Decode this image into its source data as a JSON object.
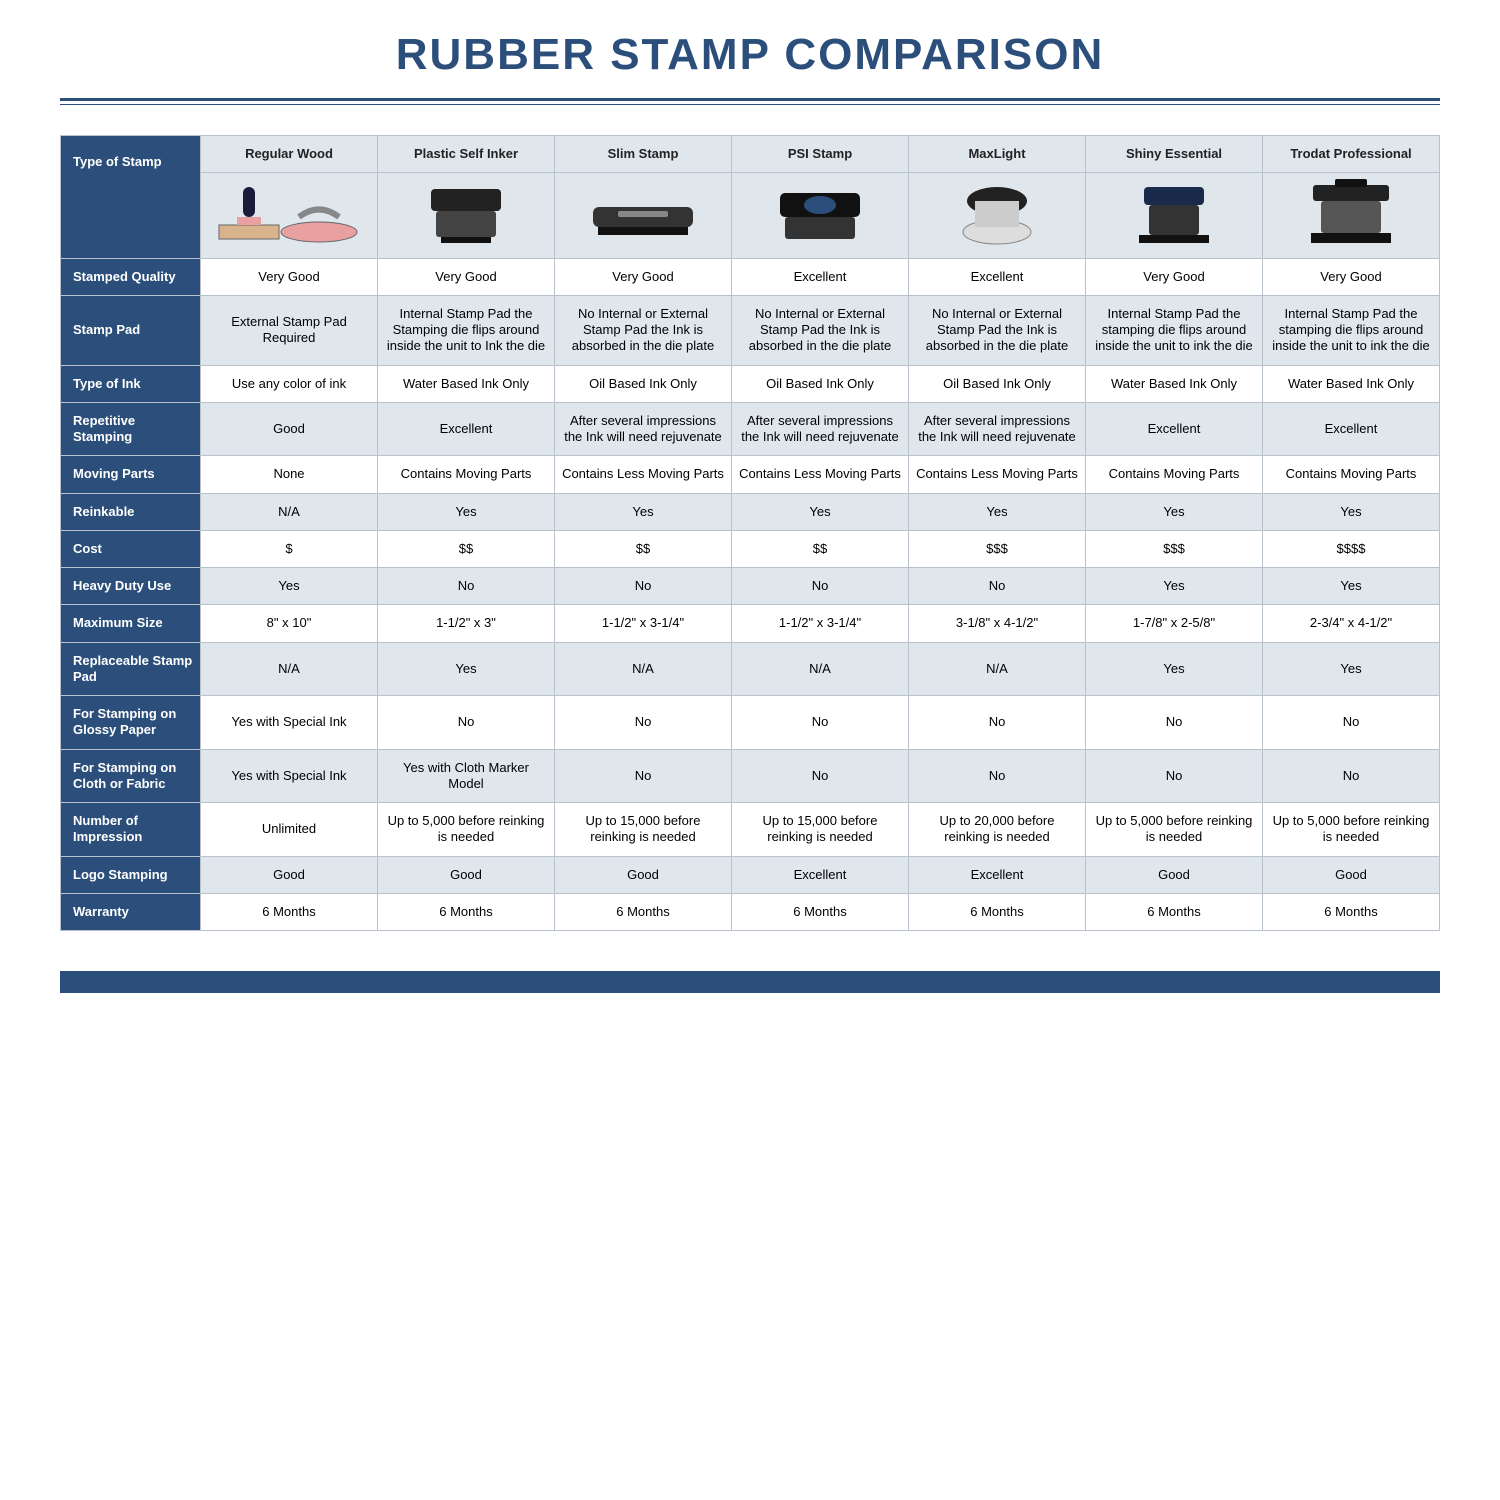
{
  "title": "RUBBER STAMP COMPARISON",
  "colors": {
    "primary": "#2b4f7a",
    "shade": "#dfe6ec",
    "border": "#b8c2cc",
    "background": "#ffffff"
  },
  "cornerLabel": "Type of Stamp",
  "columns": [
    "Regular Wood",
    "Plastic Self Inker",
    "Slim Stamp",
    "PSI Stamp",
    "MaxLight",
    "Shiny Essential",
    "Trodat Professional"
  ],
  "rows": [
    {
      "label": "Stamped Quality",
      "shaded": false,
      "cells": [
        "Very Good",
        "Very Good",
        "Very Good",
        "Excellent",
        "Excellent",
        "Very Good",
        "Very Good"
      ]
    },
    {
      "label": "Stamp Pad",
      "shaded": true,
      "cells": [
        "External Stamp Pad Required",
        "Internal Stamp Pad the Stamping die flips around inside the unit to Ink the die",
        "No Internal or External Stamp Pad the Ink is absorbed in the die plate",
        "No Internal or External Stamp Pad the Ink is absorbed in the die plate",
        "No Internal or External Stamp Pad the Ink is absorbed in the die plate",
        "Internal Stamp Pad the stamping die flips around inside the unit to ink the die",
        "Internal Stamp Pad the stamping die flips around inside the unit to ink the die"
      ]
    },
    {
      "label": "Type of Ink",
      "shaded": false,
      "cells": [
        "Use any color of ink",
        "Water Based Ink Only",
        "Oil Based Ink Only",
        "Oil Based Ink Only",
        "Oil Based Ink Only",
        "Water Based Ink Only",
        "Water Based Ink Only"
      ]
    },
    {
      "label": "Repetitive Stamping",
      "shaded": true,
      "cells": [
        "Good",
        "Excellent",
        "After several impressions the Ink will need rejuvenate",
        "After several impressions the Ink will need rejuvenate",
        "After several impressions the Ink will need rejuvenate",
        "Excellent",
        "Excellent"
      ]
    },
    {
      "label": "Moving Parts",
      "shaded": false,
      "cells": [
        "None",
        "Contains Moving Parts",
        "Contains Less Moving Parts",
        "Contains Less Moving Parts",
        "Contains Less Moving Parts",
        "Contains Moving Parts",
        "Contains Moving Parts"
      ]
    },
    {
      "label": "Reinkable",
      "shaded": true,
      "cells": [
        "N/A",
        "Yes",
        "Yes",
        "Yes",
        "Yes",
        "Yes",
        "Yes"
      ]
    },
    {
      "label": "Cost",
      "shaded": false,
      "cells": [
        "$",
        "$$",
        "$$",
        "$$",
        "$$$",
        "$$$",
        "$$$$"
      ]
    },
    {
      "label": "Heavy Duty Use",
      "shaded": true,
      "cells": [
        "Yes",
        "No",
        "No",
        "No",
        "No",
        "Yes",
        "Yes"
      ]
    },
    {
      "label": "Maximum Size",
      "shaded": false,
      "cells": [
        "8\" x 10\"",
        "1-1/2\" x 3\"",
        "1-1/2\" x 3-1/4\"",
        "1-1/2\" x 3-1/4\"",
        "3-1/8\" x 4-1/2\"",
        "1-7/8\" x 2-5/8\"",
        "2-3/4\" x 4-1/2\""
      ]
    },
    {
      "label": "Replaceable Stamp Pad",
      "shaded": true,
      "cells": [
        "N/A",
        "Yes",
        "N/A",
        "N/A",
        "N/A",
        "Yes",
        "Yes"
      ]
    },
    {
      "label": "For Stamping on Glossy Paper",
      "shaded": false,
      "cells": [
        "Yes with Special Ink",
        "No",
        "No",
        "No",
        "No",
        "No",
        "No"
      ]
    },
    {
      "label": "For Stamping on Cloth or Fabric",
      "shaded": true,
      "cells": [
        "Yes with Special Ink",
        "Yes with Cloth Marker Model",
        "No",
        "No",
        "No",
        "No",
        "No"
      ]
    },
    {
      "label": "Number of Impression",
      "shaded": false,
      "cells": [
        "Unlimited",
        "Up to 5,000 before reinking is needed",
        "Up to 15,000 before reinking is needed",
        "Up to 15,000 before reinking is needed",
        "Up to 20,000 before reinking is needed",
        "Up to 5,000 before reinking is needed",
        "Up to 5,000 before reinking is needed"
      ]
    },
    {
      "label": "Logo Stamping",
      "shaded": true,
      "cells": [
        "Good",
        "Good",
        "Good",
        "Excellent",
        "Excellent",
        "Good",
        "Good"
      ]
    },
    {
      "label": "Warranty",
      "shaded": false,
      "cells": [
        "6 Months",
        "6 Months",
        "6 Months",
        "6 Months",
        "6 Months",
        "6 Months",
        "6 Months"
      ]
    }
  ]
}
